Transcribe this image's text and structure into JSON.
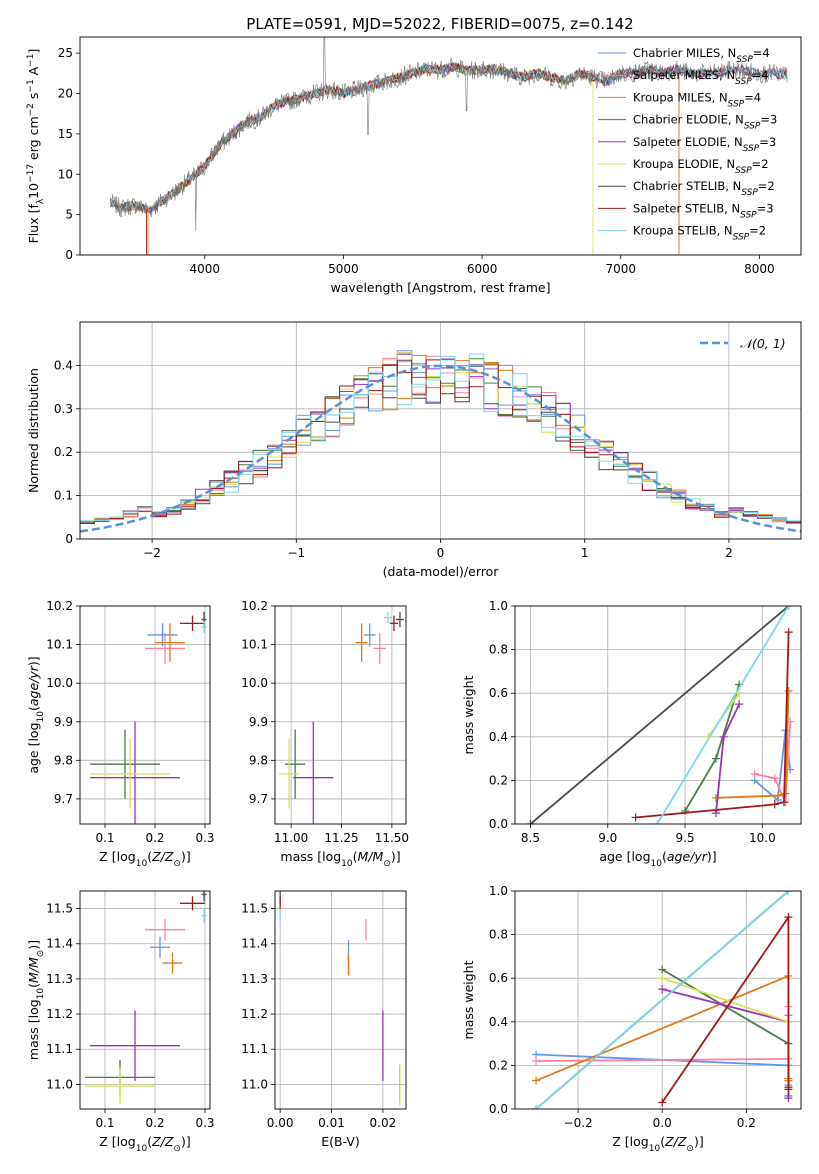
{
  "page_title": "PLATE=0591, MJD=52022, FIBERID=0075, z=0.142",
  "colors": {
    "Chabrier MILES": "#6495ed",
    "Salpeter MILES": "#ff7fa0",
    "Kroupa MILES": "#e07b1a",
    "Chabrier ELODIE": "#4a7a4a",
    "Salpeter ELODIE": "#9b30c0",
    "Kroupa ELODIE": "#d8e050",
    "Chabrier STELIB": "#4a4a4a",
    "Salpeter STELIB": "#a01818",
    "Kroupa STELIB": "#7ad8e8",
    "normal": "#5b8fd8"
  },
  "chart_data": [
    {
      "id": "spectrum",
      "type": "line",
      "title": "PLATE=0591, MJD=52022, FIBERID=0075, z=0.142",
      "xlabel": "wavelength [Angstrom, rest frame]",
      "ylabel": "Flux [f_λ 10^-17 erg cm^-2 s^-1 A^-1]",
      "xlim": [
        3100,
        8300
      ],
      "ylim": [
        0,
        27
      ],
      "xticks": [
        4000,
        5000,
        6000,
        7000,
        8000
      ],
      "yticks": [
        0,
        5,
        10,
        15,
        20,
        25
      ],
      "grid": false,
      "legend_position": "top-right",
      "legend": [
        {
          "name": "Chabrier MILES",
          "nssp": "4"
        },
        {
          "name": "Salpeter MILES",
          "nssp": "4"
        },
        {
          "name": "Kroupa MILES",
          "nssp": "4"
        },
        {
          "name": "Chabrier ELODIE",
          "nssp": "3"
        },
        {
          "name": "Salpeter ELODIE",
          "nssp": "3"
        },
        {
          "name": "Kroupa ELODIE",
          "nssp": "2"
        },
        {
          "name": "Chabrier STELIB",
          "nssp": "2"
        },
        {
          "name": "Salpeter STELIB",
          "nssp": "3"
        },
        {
          "name": "Kroupa STELIB",
          "nssp": "2"
        }
      ],
      "continuum": {
        "x": [
          3320,
          3400,
          3500,
          3600,
          3700,
          3800,
          3900,
          4000,
          4100,
          4200,
          4300,
          4400,
          4500,
          4600,
          4700,
          4800,
          4900,
          5000,
          5100,
          5200,
          5300,
          5400,
          5500,
          5600,
          5700,
          5800,
          5900,
          6000,
          6100,
          6200,
          6300,
          6400,
          6500,
          6600,
          6700,
          6800,
          6900,
          7000,
          7100,
          7200,
          7300,
          7400,
          7500,
          7600,
          7700,
          7800,
          7900,
          8000,
          8100,
          8200
        ],
        "y": [
          6.5,
          5.8,
          6.2,
          5.5,
          6.8,
          8.0,
          9.5,
          11.0,
          13.5,
          15.0,
          16.5,
          17.0,
          18.5,
          19.0,
          19.5,
          20.0,
          20.5,
          20.0,
          20.5,
          21.0,
          21.5,
          22.0,
          22.5,
          23.0,
          23.0,
          23.3,
          22.8,
          23.0,
          23.0,
          22.5,
          22.0,
          22.5,
          22.0,
          21.5,
          22.5,
          22.0,
          21.5,
          22.5,
          22.5,
          23.0,
          22.5,
          23.0,
          22.5,
          22.5,
          22.5,
          23.0,
          22.8,
          22.5,
          22.5,
          22.3
        ]
      }
    },
    {
      "id": "residuals",
      "type": "line",
      "xlabel": "(data-model)/error",
      "ylabel": "Normed distribution",
      "xlim": [
        -2.5,
        2.5
      ],
      "ylim": [
        0,
        0.5
      ],
      "xticks": [
        -2,
        -1,
        0,
        1,
        2
      ],
      "yticks": [
        0.0,
        0.1,
        0.2,
        0.3,
        0.4
      ],
      "grid": true,
      "legend_position": "top-right",
      "legend": [
        {
          "name": "𝒩(0, 1)"
        }
      ]
    },
    {
      "id": "age_vs_Z",
      "type": "scatter",
      "xlabel": "Z [log10(Z/Z☉)]",
      "ylabel": "age [log10(age/yr)]",
      "xlim": [
        0.05,
        0.31
      ],
      "ylim": [
        9.635,
        10.2
      ],
      "xticks": [
        0.1,
        0.2,
        0.3
      ],
      "xticklabels": [
        "0.1",
        "0.2",
        "0.3"
      ],
      "yticks": [
        9.7,
        9.8,
        9.9,
        10.0,
        10.1,
        10.2
      ],
      "yticklabels": [
        "9.7",
        "9.8",
        "9.9",
        "10.0",
        "10.1",
        "10.2"
      ],
      "grid": true,
      "points": [
        {
          "name": "Chabrier MILES",
          "x": 0.215,
          "y": 10.125,
          "ex": 0.03,
          "ey": 0.03
        },
        {
          "name": "Salpeter MILES",
          "x": 0.22,
          "y": 10.09,
          "ex": 0.04,
          "ey": 0.04
        },
        {
          "name": "Kroupa MILES",
          "x": 0.23,
          "y": 10.105,
          "ex": 0.03,
          "ey": 0.05
        },
        {
          "name": "Chabrier ELODIE",
          "x": 0.14,
          "y": 9.79,
          "ex": 0.07,
          "ey": 0.09
        },
        {
          "name": "Salpeter ELODIE",
          "x": 0.16,
          "y": 9.755,
          "ex": 0.09,
          "ey": 0.145
        },
        {
          "name": "Kroupa ELODIE",
          "x": 0.15,
          "y": 9.765,
          "ex": 0.08,
          "ey": 0.09
        },
        {
          "name": "Chabrier STELIB",
          "x": 0.298,
          "y": 10.165,
          "ex": 0.005,
          "ey": 0.02
        },
        {
          "name": "Salpeter STELIB",
          "x": 0.275,
          "y": 10.155,
          "ex": 0.025,
          "ey": 0.02
        },
        {
          "name": "Kroupa STELIB",
          "x": 0.298,
          "y": 10.145,
          "ex": 0.005,
          "ey": 0.015
        }
      ]
    },
    {
      "id": "age_vs_mass",
      "type": "scatter",
      "xlabel": "mass [log10(M/M☉)]",
      "ylabel": "",
      "xlim": [
        10.92,
        11.57
      ],
      "ylim": [
        9.635,
        10.2
      ],
      "xticks": [
        11.0,
        11.25,
        11.5
      ],
      "xticklabels": [
        "11.00",
        "11.25",
        "11.50"
      ],
      "yticks": [
        9.7,
        9.8,
        9.9,
        10.0,
        10.1,
        10.2
      ],
      "yticklabels": [
        "9.7",
        "9.8",
        "9.9",
        "10.0",
        "10.1",
        "10.2"
      ],
      "grid": true,
      "points": [
        {
          "name": "Chabrier MILES",
          "x": 11.39,
          "y": 10.125,
          "ex": 0.03,
          "ey": 0.03
        },
        {
          "name": "Salpeter MILES",
          "x": 11.44,
          "y": 10.09,
          "ex": 0.03,
          "ey": 0.04
        },
        {
          "name": "Kroupa MILES",
          "x": 11.35,
          "y": 10.105,
          "ex": 0.03,
          "ey": 0.05
        },
        {
          "name": "Chabrier ELODIE",
          "x": 11.02,
          "y": 9.79,
          "ex": 0.05,
          "ey": 0.09
        },
        {
          "name": "Salpeter ELODIE",
          "x": 11.11,
          "y": 9.755,
          "ex": 0.1,
          "ey": 0.145
        },
        {
          "name": "Kroupa ELODIE",
          "x": 10.99,
          "y": 9.765,
          "ex": 0.05,
          "ey": 0.09
        },
        {
          "name": "Chabrier STELIB",
          "x": 11.54,
          "y": 10.165,
          "ex": 0.02,
          "ey": 0.02
        },
        {
          "name": "Salpeter STELIB",
          "x": 11.51,
          "y": 10.155,
          "ex": 0.02,
          "ey": 0.02
        },
        {
          "name": "Kroupa STELIB",
          "x": 11.48,
          "y": 10.17,
          "ex": 0.02,
          "ey": 0.015
        }
      ]
    },
    {
      "id": "mass_weight_vs_age",
      "type": "line",
      "xlabel": "age [log10(age/yr)]",
      "ylabel": "mass weight",
      "xlim": [
        8.4,
        10.25
      ],
      "ylim": [
        0,
        1
      ],
      "xticks": [
        8.5,
        9.0,
        9.5,
        10.0
      ],
      "xticklabels": [
        "8.5",
        "9.0",
        "9.5",
        "10.0"
      ],
      "yticks": [
        0,
        0.2,
        0.4,
        0.6,
        0.8,
        1.0
      ],
      "yticklabels": [
        "0.0",
        "0.2",
        "0.4",
        "0.6",
        "0.8",
        "1.0"
      ],
      "grid": true,
      "series": [
        {
          "name": "Chabrier MILES",
          "x": [
            9.95,
            10.1,
            10.15,
            10.18
          ],
          "y": [
            0.2,
            0.11,
            0.43,
            0.25
          ]
        },
        {
          "name": "Salpeter MILES",
          "x": [
            9.95,
            10.08,
            10.15,
            10.18
          ],
          "y": [
            0.23,
            0.21,
            0.1,
            0.47
          ]
        },
        {
          "name": "Kroupa MILES",
          "x": [
            9.7,
            10.1,
            10.15,
            10.17
          ],
          "y": [
            0.12,
            0.13,
            0.14,
            0.61
          ]
        },
        {
          "name": "Chabrier ELODIE",
          "x": [
            9.5,
            9.7,
            9.85
          ],
          "y": [
            0.06,
            0.3,
            0.64
          ]
        },
        {
          "name": "Salpeter ELODIE",
          "x": [
            9.7,
            9.75,
            9.85
          ],
          "y": [
            0.05,
            0.4,
            0.55
          ]
        },
        {
          "name": "Kroupa ELODIE",
          "x": [
            9.65,
            9.85
          ],
          "y": [
            0.4,
            0.6
          ]
        },
        {
          "name": "Chabrier STELIB",
          "x": [
            8.5,
            10.17
          ],
          "y": [
            0.0,
            1.0
          ]
        },
        {
          "name": "Salpeter STELIB",
          "x": [
            9.18,
            10.08,
            10.14,
            10.17
          ],
          "y": [
            0.03,
            0.09,
            0.1,
            0.88
          ]
        },
        {
          "name": "Kroupa STELIB",
          "x": [
            9.32,
            10.17
          ],
          "y": [
            0.0,
            1.0
          ]
        }
      ]
    },
    {
      "id": "mass_vs_Z",
      "type": "scatter",
      "xlabel": "Z [log10(Z/Z☉)]",
      "ylabel": "mass [log10(M/M☉)]",
      "xlim": [
        0.05,
        0.31
      ],
      "ylim": [
        10.93,
        11.55
      ],
      "xticks": [
        0.1,
        0.2,
        0.3
      ],
      "xticklabels": [
        "0.1",
        "0.2",
        "0.3"
      ],
      "yticks": [
        11.0,
        11.1,
        11.2,
        11.3,
        11.4,
        11.5
      ],
      "yticklabels": [
        "11.0",
        "11.1",
        "11.2",
        "11.3",
        "11.4",
        "11.5"
      ],
      "grid": true,
      "points": [
        {
          "name": "Chabrier MILES",
          "x": 0.21,
          "y": 11.39,
          "ex": 0.02,
          "ey": 0.03
        },
        {
          "name": "Salpeter MILES",
          "x": 0.22,
          "y": 11.44,
          "ex": 0.04,
          "ey": 0.03
        },
        {
          "name": "Kroupa MILES",
          "x": 0.235,
          "y": 11.345,
          "ex": 0.02,
          "ey": 0.03
        },
        {
          "name": "Chabrier ELODIE",
          "x": 0.13,
          "y": 11.02,
          "ex": 0.07,
          "ey": 0.05
        },
        {
          "name": "Salpeter ELODIE",
          "x": 0.16,
          "y": 11.11,
          "ex": 0.09,
          "ey": 0.1
        },
        {
          "name": "Kroupa ELODIE",
          "x": 0.13,
          "y": 10.995,
          "ex": 0.07,
          "ey": 0.05
        },
        {
          "name": "Chabrier STELIB",
          "x": 0.298,
          "y": 11.54,
          "ex": 0.005,
          "ey": 0.02
        },
        {
          "name": "Salpeter STELIB",
          "x": 0.275,
          "y": 11.515,
          "ex": 0.025,
          "ey": 0.02
        },
        {
          "name": "Kroupa STELIB",
          "x": 0.298,
          "y": 11.48,
          "ex": 0.005,
          "ey": 0.02
        }
      ]
    },
    {
      "id": "mass_vs_ebv",
      "type": "scatter",
      "xlabel": "E(B-V)",
      "ylabel": "",
      "xlim": [
        -0.001,
        0.0245
      ],
      "ylim": [
        10.93,
        11.55
      ],
      "xticks": [
        0.0,
        0.01,
        0.02
      ],
      "xticklabels": [
        "0.00",
        "0.01",
        "0.02"
      ],
      "yticks": [
        11.0,
        11.1,
        11.2,
        11.3,
        11.4,
        11.5
      ],
      "yticklabels": [
        "11.0",
        "11.1",
        "11.2",
        "11.3",
        "11.4",
        "11.5"
      ],
      "grid": true,
      "points": [
        {
          "name": "Chabrier MILES",
          "x": 0.0133,
          "y": 11.38,
          "ex": 0.0,
          "ey": 0.03
        },
        {
          "name": "Salpeter MILES",
          "x": 0.0167,
          "y": 11.44,
          "ex": 0.0,
          "ey": 0.03
        },
        {
          "name": "Kroupa MILES",
          "x": 0.0133,
          "y": 11.34,
          "ex": 0.0,
          "ey": 0.03
        },
        {
          "name": "Chabrier ELODIE",
          "x": 0.0233,
          "y": 11.0,
          "ex": 0.0,
          "ey": 0.05
        },
        {
          "name": "Salpeter ELODIE",
          "x": 0.02,
          "y": 11.11,
          "ex": 0.0,
          "ey": 0.1
        },
        {
          "name": "Kroupa ELODIE",
          "x": 0.0233,
          "y": 11.0,
          "ex": 0.0,
          "ey": 0.06
        },
        {
          "name": "Chabrier STELIB",
          "x": 0.0,
          "y": 11.53,
          "ex": 0.0,
          "ey": 0.02
        },
        {
          "name": "Salpeter STELIB",
          "x": 0.0,
          "y": 11.515,
          "ex": 0.0,
          "ey": 0.02
        },
        {
          "name": "Kroupa STELIB",
          "x": 0.0,
          "y": 11.48,
          "ex": 0.0,
          "ey": 0.02
        }
      ]
    },
    {
      "id": "mass_weight_vs_Z",
      "type": "line",
      "xlabel": "Z [log10(Z/Z☉)]",
      "ylabel": "mass weight",
      "xlim": [
        -0.35,
        0.33
      ],
      "ylim": [
        0,
        1
      ],
      "xticks": [
        -0.2,
        0.0,
        0.2
      ],
      "xticklabels": [
        "−0.2",
        "0.0",
        "0.2"
      ],
      "yticks": [
        0,
        0.2,
        0.4,
        0.6,
        0.8,
        1.0
      ],
      "yticklabels": [
        "0.0",
        "0.2",
        "0.4",
        "0.6",
        "0.8",
        "1.0"
      ],
      "grid": true,
      "series": [
        {
          "name": "Chabrier MILES",
          "x": [
            -0.3,
            0.3,
            0.3,
            0.3
          ],
          "y": [
            0.25,
            0.2,
            0.43,
            0.11
          ]
        },
        {
          "name": "Salpeter MILES",
          "x": [
            -0.3,
            0.3,
            0.3,
            0.3
          ],
          "y": [
            0.22,
            0.23,
            0.47,
            0.1
          ]
        },
        {
          "name": "Kroupa MILES",
          "x": [
            -0.3,
            0.3,
            0.3,
            0.3
          ],
          "y": [
            0.13,
            0.61,
            0.13,
            0.14
          ]
        },
        {
          "name": "Chabrier ELODIE",
          "x": [
            0.0,
            0.3,
            0.3
          ],
          "y": [
            0.64,
            0.3,
            0.06
          ]
        },
        {
          "name": "Salpeter ELODIE",
          "x": [
            0.0,
            0.3,
            0.3
          ],
          "y": [
            0.55,
            0.4,
            0.05
          ]
        },
        {
          "name": "Kroupa ELODIE",
          "x": [
            0.0,
            0.3
          ],
          "y": [
            0.6,
            0.4
          ]
        },
        {
          "name": "Chabrier STELIB",
          "x": [
            -0.3,
            0.3
          ],
          "y": [
            0.0,
            1.0
          ]
        },
        {
          "name": "Salpeter STELIB",
          "x": [
            0.0,
            0.3,
            0.3,
            0.3
          ],
          "y": [
            0.03,
            0.88,
            0.09,
            0.1
          ]
        },
        {
          "name": "Kroupa STELIB",
          "x": [
            -0.3,
            0.3
          ],
          "y": [
            0.0,
            1.0
          ]
        }
      ]
    }
  ]
}
